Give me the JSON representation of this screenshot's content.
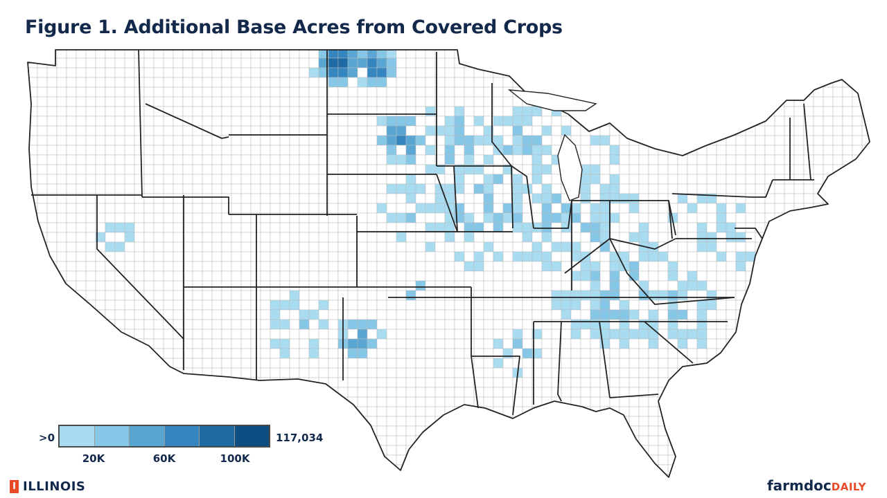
{
  "title": "Figure 1. Additional Base Acres from Covered Crops",
  "legend": {
    "min_label": ">0",
    "max_label": "117,034",
    "colors": [
      "#a9dcf1",
      "#86c6e6",
      "#5aa6d3",
      "#3586bf",
      "#1f6aa3",
      "#0d4f83"
    ],
    "ticks": [
      {
        "label": "20K",
        "after_swatch": 1
      },
      {
        "label": "60K",
        "after_swatch": 3
      },
      {
        "label": "100K",
        "after_swatch": 5
      }
    ]
  },
  "map": {
    "fill_none": "#ffffff",
    "county_line": "#b9b9b9",
    "state_line": "#222222",
    "states": [
      "WA",
      "OR",
      "CA",
      "ID",
      "NV",
      "MT",
      "WY",
      "UT",
      "AZ",
      "CO",
      "NM",
      "ND",
      "SD",
      "NE",
      "KS",
      "OK",
      "TX",
      "MN",
      "IA",
      "MO",
      "AR",
      "LA",
      "WI",
      "IL",
      "MI",
      "IN",
      "OH",
      "KY",
      "TN",
      "MS",
      "AL",
      "GA",
      "FL",
      "SC",
      "NC",
      "VA",
      "WV",
      "PA",
      "NY",
      "MD",
      "DE",
      "NJ",
      "CT",
      "RI",
      "MA",
      "VT",
      "NH",
      "ME"
    ]
  },
  "footer": {
    "logo_mark": "I",
    "logo_text": "ILLINOIS",
    "brand_part1": "farmdoc",
    "brand_part2": "DAILY"
  }
}
